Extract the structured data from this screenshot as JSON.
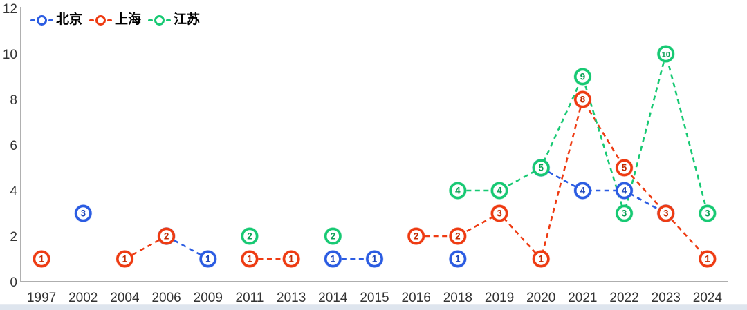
{
  "page": {
    "background": "#ffffff",
    "bottom_bar_color": "#dee5ee"
  },
  "chart_data": {
    "type": "line",
    "line_style": "dashed",
    "marker_style": "circled-number-labels",
    "grid": false,
    "legend_position": "top-left",
    "title": "",
    "xlabel": "",
    "ylabel": "",
    "categories": [
      "1997",
      "2002",
      "2004",
      "2006",
      "2009",
      "2011",
      "2013",
      "2014",
      "2015",
      "2016",
      "2018",
      "2019",
      "2020",
      "2021",
      "2022",
      "2023",
      "2024"
    ],
    "ylim": [
      0,
      12
    ],
    "yticks": [
      0,
      2,
      4,
      6,
      8,
      10,
      12
    ],
    "axis_color": "#7d7d7d",
    "tick_label_color": "#333333",
    "series": [
      {
        "id": "beijing",
        "name": "北京",
        "color": "#2b5ce2",
        "digit_color": "#1d44b8",
        "values": [
          null,
          3,
          null,
          2,
          1,
          null,
          null,
          1,
          1,
          null,
          1,
          null,
          5,
          4,
          4,
          3,
          null
        ]
      },
      {
        "id": "shanghai",
        "name": "上海",
        "color": "#ee3b12",
        "digit_color": "#c22a00",
        "values": [
          1,
          null,
          1,
          2,
          null,
          1,
          1,
          null,
          null,
          2,
          2,
          3,
          1,
          8,
          5,
          3,
          1
        ]
      },
      {
        "id": "jiangsu",
        "name": "江苏",
        "color": "#17c973",
        "digit_color": "#0b9e55",
        "values": [
          null,
          null,
          null,
          null,
          null,
          2,
          null,
          2,
          null,
          null,
          4,
          4,
          5,
          9,
          3,
          10,
          3
        ]
      }
    ]
  }
}
